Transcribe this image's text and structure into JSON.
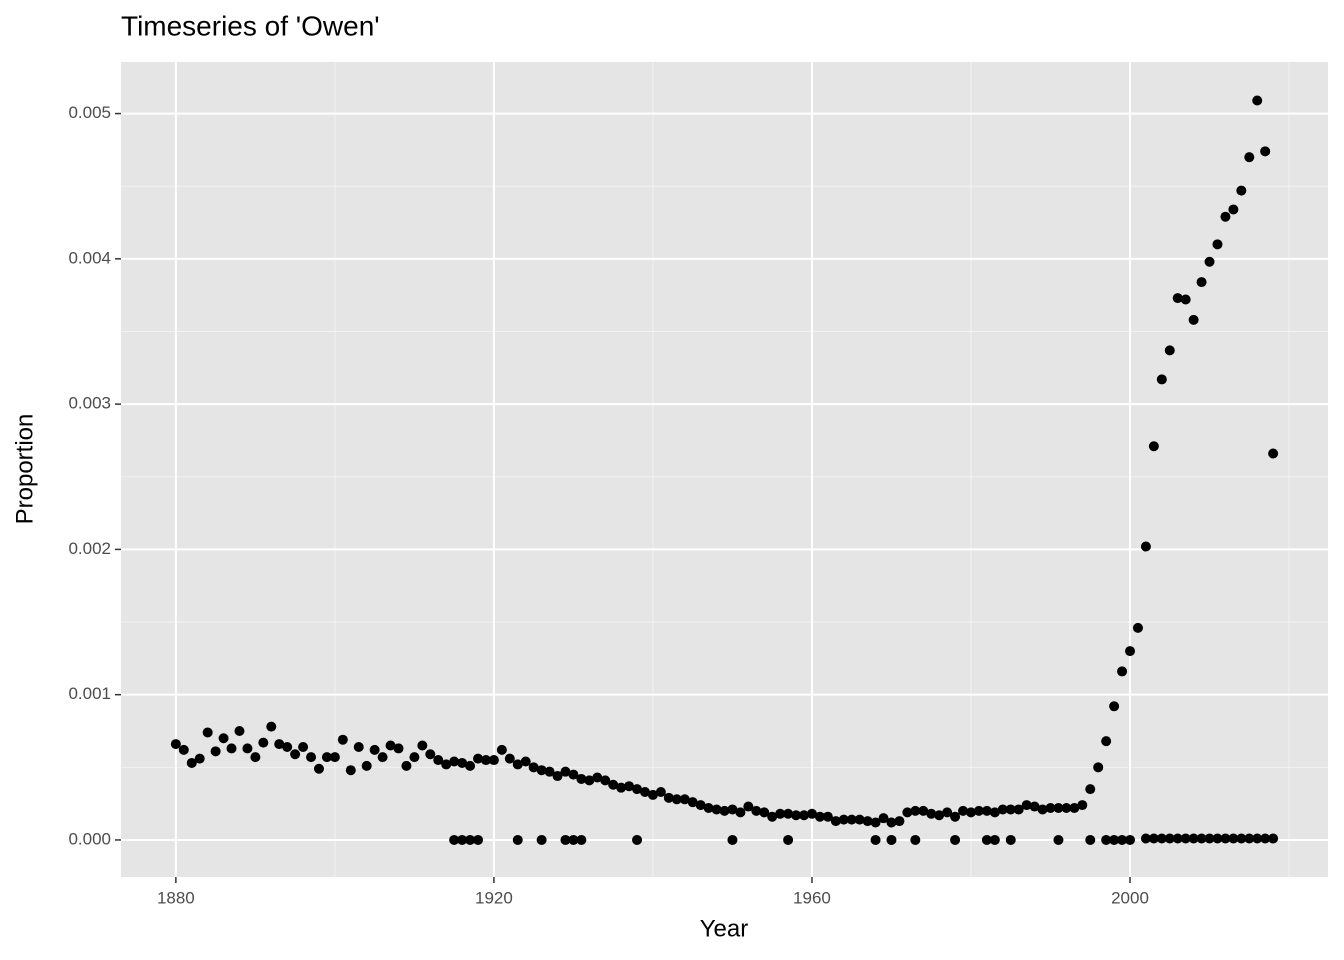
{
  "chart_data": {
    "type": "scatter",
    "title": "Timeseries of 'Owen'",
    "x_label": "Year",
    "y_label": "Proportion",
    "xlim": [
      1873.1,
      2024.9
    ],
    "ylim": [
      -0.000255,
      0.005355
    ],
    "xticks": [
      1880,
      1920,
      1960,
      2000
    ],
    "yticks": [
      {
        "value": 0,
        "label": "0.000"
      },
      {
        "value": 0.001,
        "label": "0.001"
      },
      {
        "value": 0.002,
        "label": "0.002"
      },
      {
        "value": 0.003,
        "label": "0.003"
      },
      {
        "value": 0.004,
        "label": "0.004"
      },
      {
        "value": 0.005,
        "label": "0.005"
      }
    ],
    "x_minor_ticks": [
      1900,
      1940,
      1980,
      2020
    ],
    "y_minor_ticks": [
      0.0005,
      0.0015,
      0.0025,
      0.0035,
      0.0045
    ],
    "grid": true,
    "series": [
      {
        "color": "#000000",
        "x": [
          1880,
          1881,
          1882,
          1883,
          1884,
          1885,
          1886,
          1887,
          1888,
          1889,
          1890,
          1891,
          1892,
          1893,
          1894,
          1895,
          1896,
          1897,
          1898,
          1899,
          1900,
          1901,
          1902,
          1903,
          1904,
          1905,
          1906,
          1907,
          1908,
          1909,
          1910,
          1911,
          1912,
          1913,
          1914,
          1915,
          1916,
          1917,
          1918,
          1919,
          1920,
          1921,
          1922,
          1923,
          1924,
          1925,
          1926,
          1927,
          1928,
          1929,
          1930,
          1931,
          1932,
          1933,
          1934,
          1935,
          1936,
          1937,
          1938,
          1939,
          1940,
          1941,
          1942,
          1943,
          1944,
          1945,
          1946,
          1947,
          1948,
          1949,
          1950,
          1951,
          1952,
          1953,
          1954,
          1955,
          1956,
          1957,
          1958,
          1959,
          1960,
          1961,
          1962,
          1963,
          1964,
          1965,
          1966,
          1967,
          1968,
          1969,
          1970,
          1971,
          1972,
          1973,
          1974,
          1975,
          1976,
          1977,
          1978,
          1979,
          1980,
          1981,
          1982,
          1983,
          1984,
          1985,
          1986,
          1987,
          1988,
          1989,
          1990,
          1991,
          1992,
          1993,
          1994,
          1995,
          1996,
          1997,
          1998,
          1999,
          2000,
          2001,
          2002,
          2003,
          2004,
          2005,
          2006,
          2007,
          2008,
          2009,
          2010,
          2011,
          2012,
          2013,
          2014,
          2015,
          2016,
          2017,
          2018
        ],
        "values": [
          0.00066,
          0.00062,
          0.00053,
          0.00056,
          0.00074,
          0.00061,
          0.0007,
          0.00063,
          0.00075,
          0.00063,
          0.00057,
          0.00067,
          0.00078,
          0.00066,
          0.00064,
          0.00059,
          0.00064,
          0.00057,
          0.00049,
          0.00057,
          0.00057,
          0.00069,
          0.00048,
          0.00064,
          0.00051,
          0.00062,
          0.00057,
          0.00065,
          0.00063,
          0.00051,
          0.00057,
          0.00065,
          0.00059,
          0.00055,
          0.00052,
          0.00054,
          0.00053,
          0.00051,
          0.00056,
          0.00055,
          0.00055,
          0.00062,
          0.00056,
          0.00052,
          0.00054,
          0.0005,
          0.00048,
          0.00047,
          0.00044,
          0.00047,
          0.00045,
          0.00042,
          0.00041,
          0.00043,
          0.00041,
          0.00038,
          0.00036,
          0.00037,
          0.00035,
          0.00033,
          0.00031,
          0.00033,
          0.00029,
          0.00028,
          0.00028,
          0.00026,
          0.00024,
          0.00022,
          0.00021,
          0.0002,
          0.00021,
          0.00019,
          0.00023,
          0.0002,
          0.00019,
          0.00016,
          0.00018,
          0.00018,
          0.00017,
          0.00017,
          0.00018,
          0.00016,
          0.00016,
          0.00013,
          0.00014,
          0.00014,
          0.00014,
          0.00013,
          0.00012,
          0.00015,
          0.00012,
          0.00013,
          0.00019,
          0.0002,
          0.0002,
          0.00018,
          0.00017,
          0.00019,
          0.00016,
          0.0002,
          0.00019,
          0.0002,
          0.0002,
          0.00019,
          0.00021,
          0.00021,
          0.00021,
          0.00024,
          0.00023,
          0.00021,
          0.00022,
          0.00022,
          0.00022,
          0.00022,
          0.00024,
          0.00035,
          0.0005,
          0.00068,
          0.00092,
          0.00116,
          0.0013,
          0.00146,
          0.00202,
          0.00271,
          0.00317,
          0.00337,
          0.00373,
          0.00372,
          0.00358,
          0.00384,
          0.00398,
          0.0041,
          0.00429,
          0.00434,
          0.00447,
          0.0047,
          0.00509,
          0.00474,
          0.00266
        ]
      },
      {
        "color": "#000000",
        "x": [
          1915,
          1916,
          1917,
          1918,
          1923,
          1926,
          1929,
          1930,
          1931,
          1938,
          1950,
          1957,
          1968,
          1970,
          1973,
          1978,
          1982,
          1983,
          1985,
          1991,
          1995,
          1997,
          1998,
          1999,
          2000,
          2002,
          2003,
          2004,
          2005,
          2006,
          2007,
          2008,
          2009,
          2010,
          2011,
          2012,
          2013,
          2014,
          2015,
          2016,
          2017,
          2018
        ],
        "values": [
          0,
          0,
          0,
          0,
          0,
          0,
          0,
          0,
          0,
          0,
          0,
          0,
          0,
          0,
          0,
          0,
          0,
          0,
          0,
          0,
          0,
          0,
          0,
          0,
          0,
          1e-05,
          1e-05,
          1e-05,
          1e-05,
          1e-05,
          1e-05,
          1e-05,
          1e-05,
          1e-05,
          1e-05,
          1e-05,
          1e-05,
          1e-05,
          1e-05,
          1e-05,
          1e-05,
          1e-05
        ]
      }
    ]
  }
}
